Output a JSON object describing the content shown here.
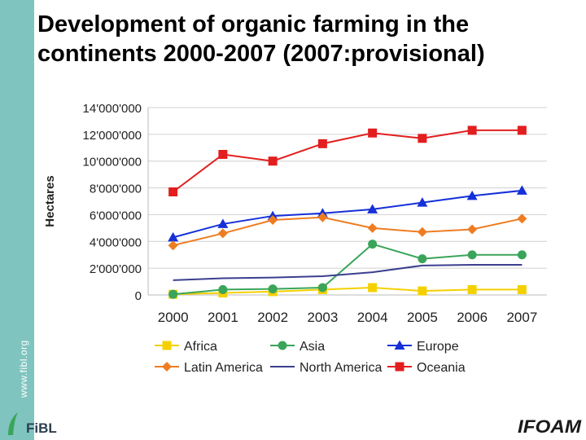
{
  "page": {
    "title_line1": "Development of organic farming in the",
    "title_line2": "continents 2000-2007 (2007:provisional)",
    "sidebar_text": "www.fibl.org",
    "logo_left_text": "FiBL",
    "logo_right_text": "IFOAM",
    "colors": {
      "sidebar": "#7fc4bf",
      "title": "#000000"
    }
  },
  "chart_data": {
    "type": "line",
    "ylabel": "Hectares",
    "xlabel": "",
    "categories": [
      "2000",
      "2001",
      "2002",
      "2003",
      "2004",
      "2005",
      "2006",
      "2007"
    ],
    "ylim": [
      0,
      14000000
    ],
    "yticks": [
      0,
      2000000,
      4000000,
      6000000,
      8000000,
      10000000,
      12000000,
      14000000
    ],
    "ytick_labels": [
      "0",
      "2'000'000",
      "4'000'000",
      "6'000'000",
      "8'000'000",
      "10'000'000",
      "12'000'000",
      "14'000'000"
    ],
    "grid": "horizontal",
    "legend_position": "bottom",
    "series": [
      {
        "name": "Africa",
        "color": "#f5d000",
        "marker": "square",
        "values": [
          50000,
          150000,
          250000,
          400000,
          550000,
          300000,
          400000,
          400000
        ]
      },
      {
        "name": "Asia",
        "color": "#3aa55a",
        "marker": "circle",
        "values": [
          50000,
          400000,
          450000,
          550000,
          3800000,
          2700000,
          3000000,
          3000000
        ]
      },
      {
        "name": "Europe",
        "color": "#1530d8",
        "marker": "triangle",
        "values": [
          4300000,
          5300000,
          5900000,
          6100000,
          6400000,
          6900000,
          7400000,
          7800000
        ]
      },
      {
        "name": "Latin America",
        "color": "#ee7d22",
        "marker": "diamond",
        "values": [
          3700000,
          4600000,
          5600000,
          5800000,
          5000000,
          4700000,
          4900000,
          5700000
        ]
      },
      {
        "name": "North America",
        "color": "#3b3f8f",
        "marker": "none",
        "values": [
          1100000,
          1250000,
          1300000,
          1400000,
          1700000,
          2200000,
          2250000,
          2250000
        ]
      },
      {
        "name": "Oceania",
        "color": "#e31e1e",
        "marker": "square",
        "values": [
          7700000,
          10500000,
          10000000,
          11300000,
          12100000,
          11700000,
          12300000,
          12300000
        ]
      }
    ]
  }
}
